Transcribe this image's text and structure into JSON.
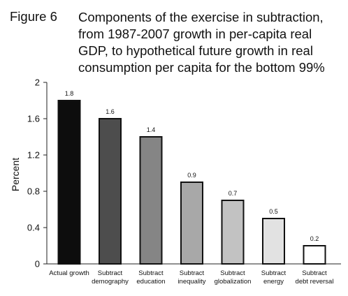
{
  "figure": {
    "label": "Figure 6",
    "title_lines": [
      "Components of the exercise in subtraction,",
      "from 1987-2007 growth in per-capita real",
      "GDP, to hypothetical future growth in real",
      "consumption per capita for the bottom 99%"
    ]
  },
  "chart_data": {
    "type": "bar",
    "title": "Components of the exercise in subtraction, from 1987-2007 growth in per-capita real GDP, to hypothetical future growth in real consumption per capita for the bottom 99%",
    "ylabel": "Percent",
    "xlabel": "",
    "ylim": [
      0,
      2
    ],
    "yticks": [
      "0",
      "0.4",
      "0.8",
      "1.2",
      "1.6",
      "2"
    ],
    "grid": false,
    "categories": [
      [
        "Actual growth"
      ],
      [
        "Subtract",
        "demography"
      ],
      [
        "Subtract",
        "education"
      ],
      [
        "Subtract",
        "inequality"
      ],
      [
        "Subtract",
        "globalization"
      ],
      [
        "Subtract",
        "energy"
      ],
      [
        "Subtract",
        "debt reversal"
      ]
    ],
    "values": [
      1.8,
      1.6,
      1.4,
      0.9,
      0.7,
      0.5,
      0.2
    ],
    "data_labels": [
      "1.8",
      "1.6",
      "1.4",
      "0.9",
      "0.7",
      "0.5",
      "0.2"
    ],
    "colors": [
      "#0d0d0d",
      "#4d4d4d",
      "#858585",
      "#a8a8a8",
      "#c2c2c2",
      "#e2e2e2",
      "#ffffff"
    ]
  }
}
